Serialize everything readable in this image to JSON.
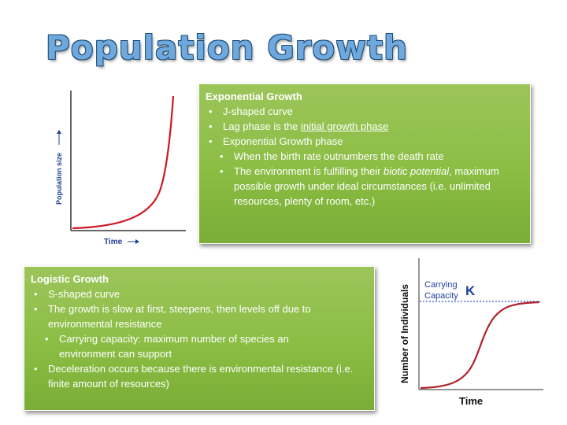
{
  "title": "Population Growth",
  "exp_graph": {
    "ylabel": "Population size",
    "xlabel": "Time"
  },
  "exponential": {
    "heading": "Exponential Growth",
    "b1": "J-shaped curve",
    "b2_pre": "Lag phase is the ",
    "b2_u": "initial growth phase",
    "b3": "Exponential Growth  phase",
    "s1": "When the birth rate outnumbers the death rate",
    "s2_pre": "The environment is fulfilling their ",
    "s2_i": "biotic potential",
    "s2_post": ", maximum possible growth under ideal circumstances (i.e. unlimited resources, plenty of room, etc.)"
  },
  "logistic": {
    "heading": "Logistic Growth",
    "b1": "S-shaped curve",
    "b2": "The growth is slow at first, steepens, then levels off due to environmental resistance",
    "s1": "Carrying capacity: maximum number of species an environment can support",
    "b3": "Deceleration occurs because there is environmental resistance (i.e. finite amount of resources)"
  },
  "log_graph": {
    "ylabel": "Number of Individuals",
    "xlabel": "Time",
    "cc_line1": "Carrying",
    "cc_line2": "Capacity",
    "k": "K"
  },
  "colors": {
    "curve": "#cc1a24",
    "title": "#6fa8dc",
    "panel": "#8bbd44",
    "dashed": "#3355cc"
  }
}
